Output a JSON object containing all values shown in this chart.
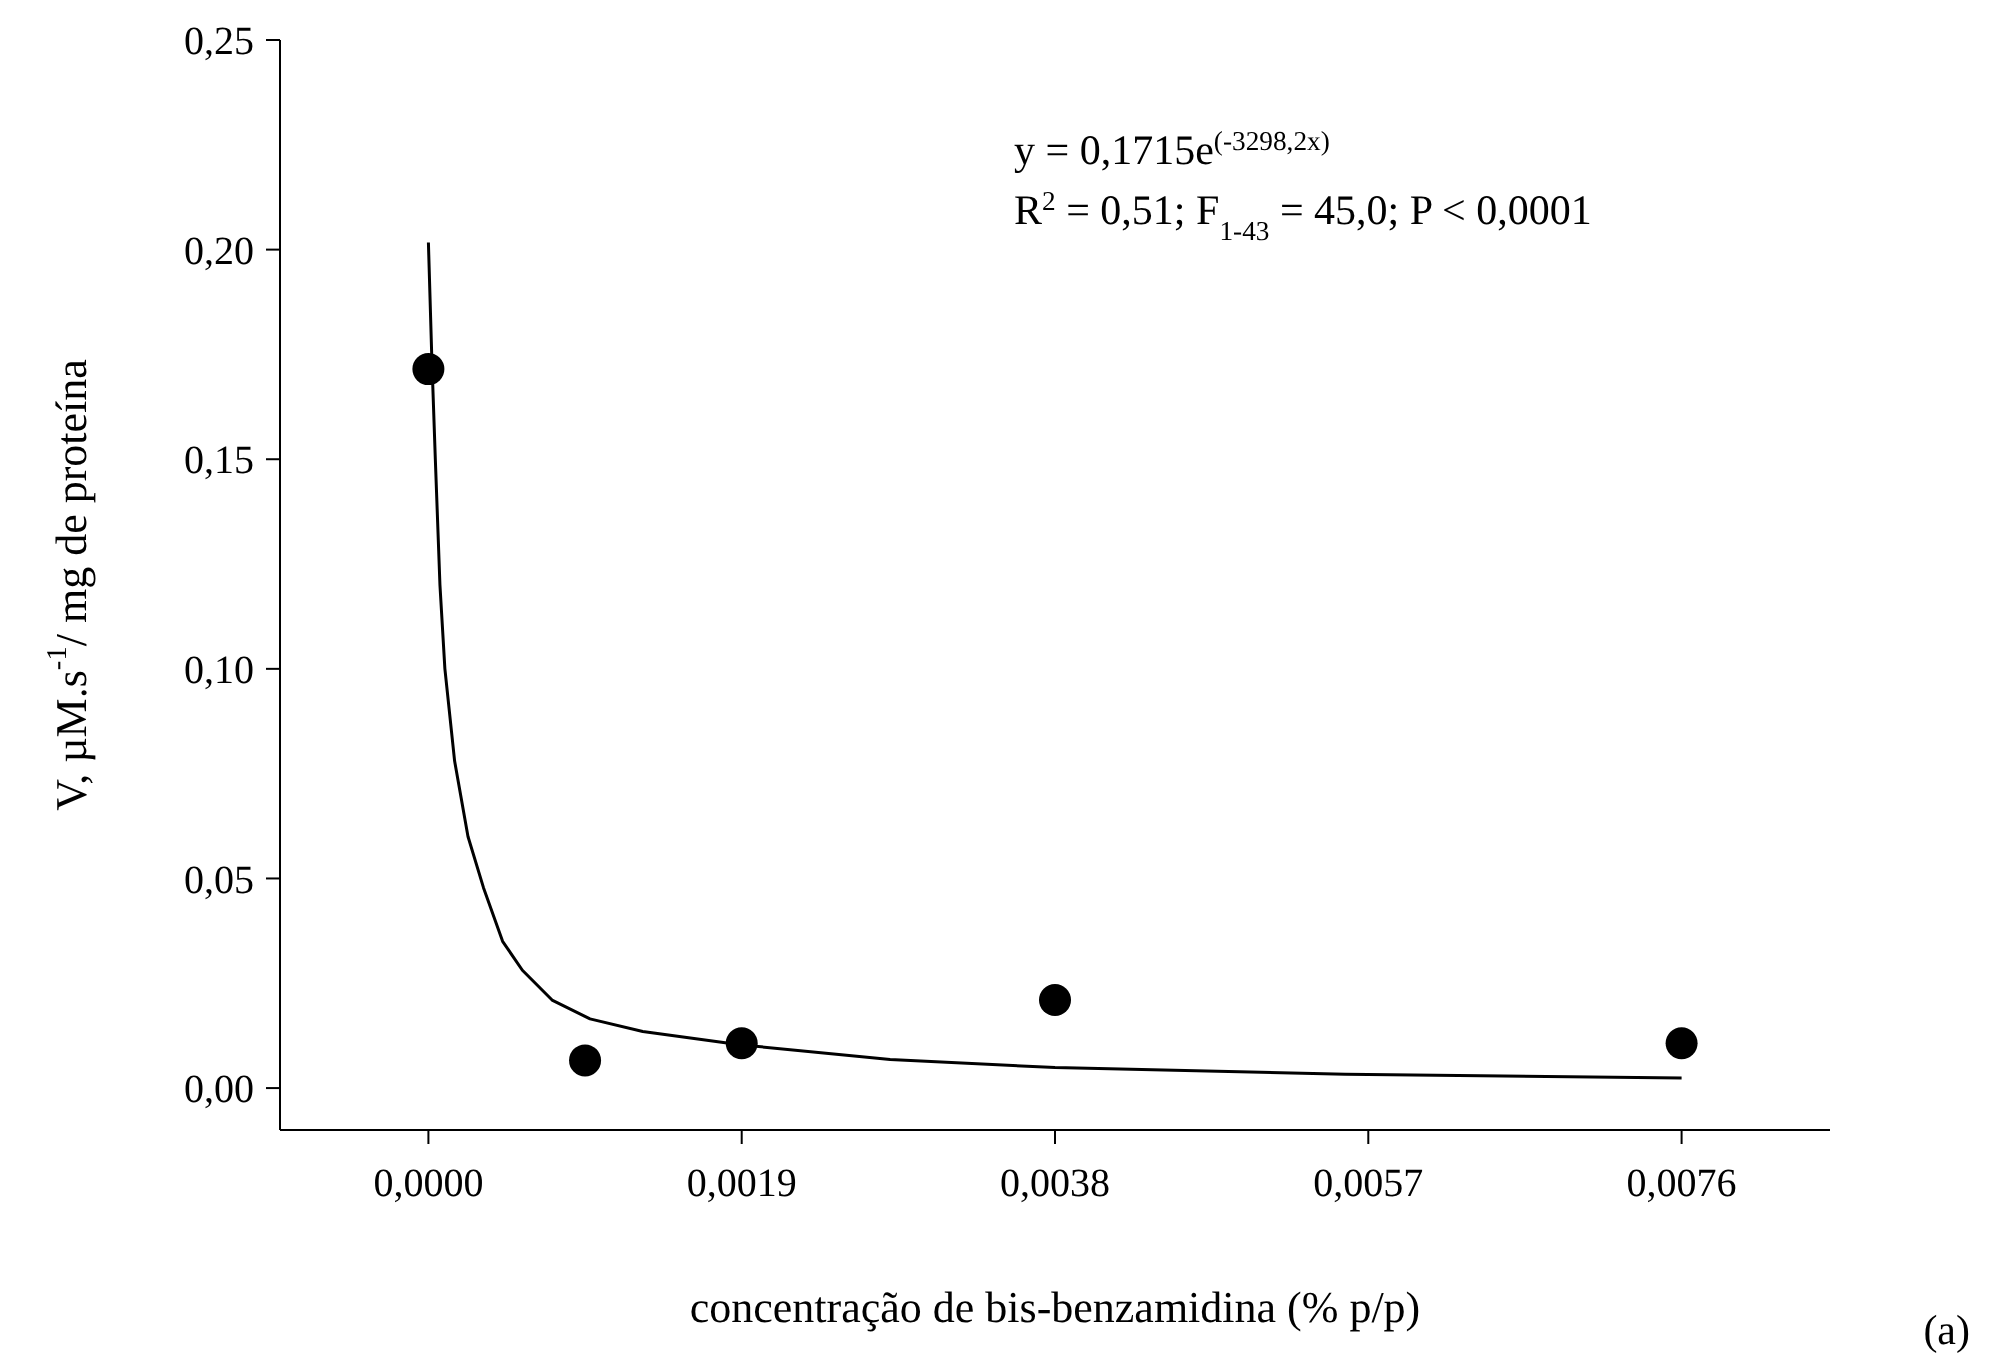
{
  "chart_data": {
    "type": "scatter",
    "xlabel": "concentração de bis-benzamidina (% p/p)",
    "ylabel": "V, µM.s$^{-1}$/ mg de proteína",
    "annotations": [
      "y = 0,1715e$^{(-3298,2x)}$",
      "R$^{2}$ = 0,51; F$_{1-43}$ = 45,0; P < 0,0001",
      "(a)"
    ],
    "xlim": [
      -0.0009,
      0.0085
    ],
    "xticks": [
      {
        "value": 0,
        "label": "0,0000"
      },
      {
        "value": 0.0019,
        "label": "0,0019"
      },
      {
        "value": 0.0038,
        "label": "0,0038"
      },
      {
        "value": 0.0057,
        "label": "0,0057"
      },
      {
        "value": 0.0076,
        "label": "0,0076"
      }
    ],
    "ylim": [
      -0.01,
      0.25
    ],
    "yticks": [
      {
        "value": 0,
        "label": "0,00"
      },
      {
        "value": 0.05,
        "label": "0,05"
      },
      {
        "value": 0.1,
        "label": "0,10"
      },
      {
        "value": 0.15,
        "label": "0,15"
      },
      {
        "value": 0.2,
        "label": "0,20"
      },
      {
        "value": 0.25,
        "label": "0,25"
      }
    ],
    "series": [
      {
        "type": "scatter",
        "color": "#000000",
        "marker": "circle",
        "x": [
          0,
          0.00095,
          0.0019,
          0.0038,
          0.0076
        ],
        "values": [
          0.1715,
          0.0066,
          0.0107,
          0.021,
          0.0107
        ]
      },
      {
        "type": "line",
        "color": "#000000",
        "marker": "none",
        "x": [
          0,
          2e-05,
          4.2e-05,
          7e-05,
          0.0001,
          0.000159,
          0.00024,
          0.000334,
          0.00045,
          0.00057,
          0.00075,
          0.00098,
          0.0013,
          0.0019,
          0.0028,
          0.0038,
          0.00556,
          0.0076
        ],
        "values": [
          0.2017,
          0.175,
          0.15,
          0.12,
          0.1,
          0.078,
          0.06,
          0.0478,
          0.035,
          0.0281,
          0.021,
          0.0165,
          0.0135,
          0.0103,
          0.0068,
          0.0049,
          0.0033,
          0.0024
        ]
      }
    ]
  }
}
